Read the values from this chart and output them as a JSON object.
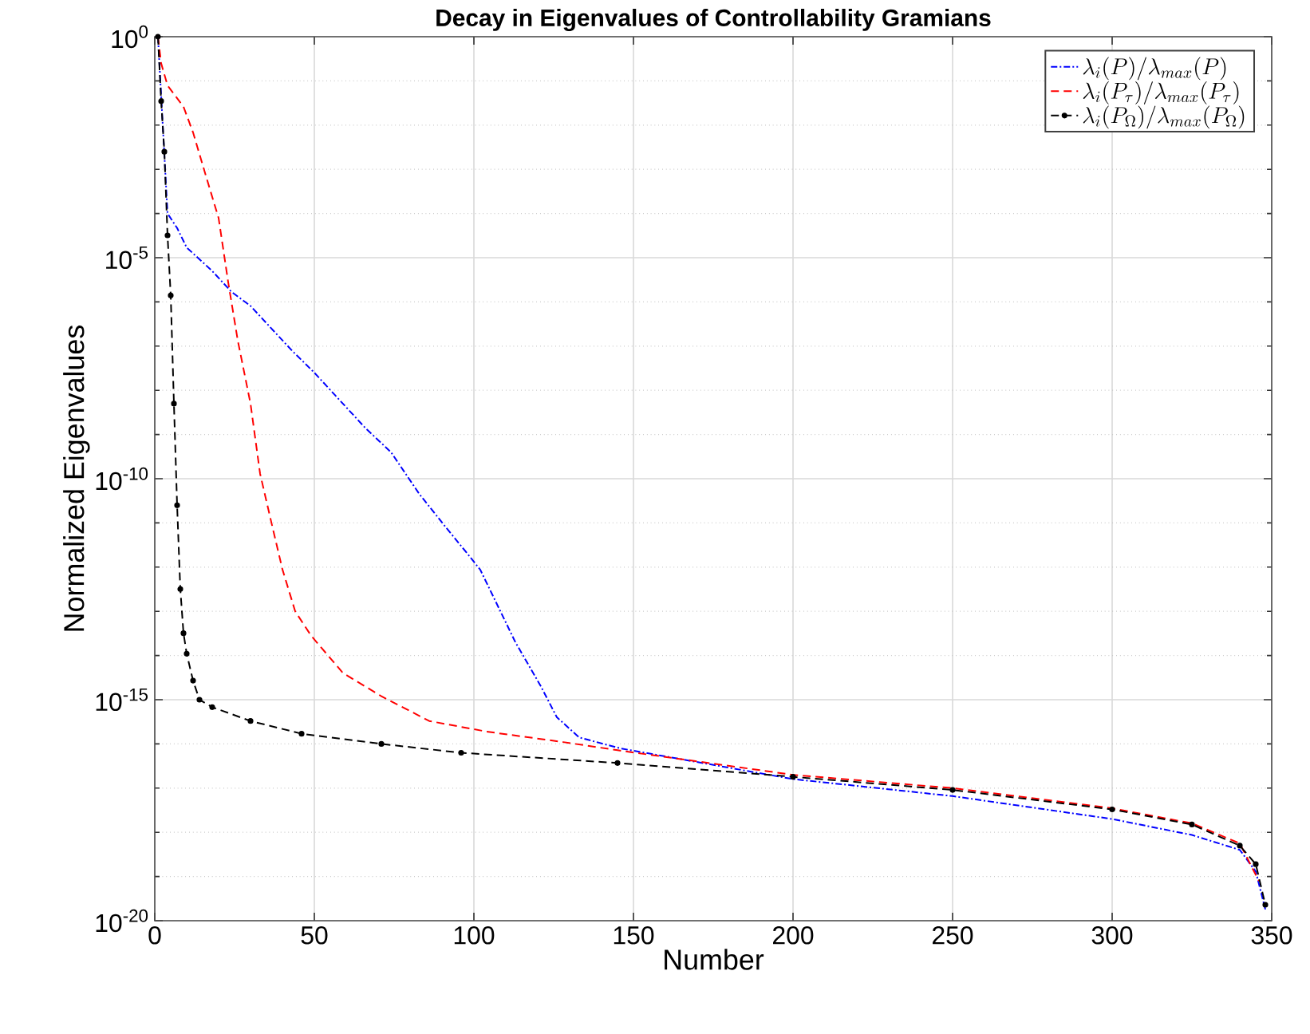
{
  "chart_data": {
    "type": "line",
    "title": "Decay in Eigenvalues of Controllability Gramians",
    "xlabel": "Number",
    "ylabel": "Normalized Eigenvalues",
    "log": "y",
    "grid": true,
    "legend": "top right",
    "xlim": [
      0,
      350
    ],
    "xticks": [
      0,
      50,
      100,
      150,
      200,
      250,
      300,
      350
    ],
    "ylim": [
      1e-20,
      1
    ],
    "yticks": [
      {
        "value": 1e-20,
        "label": "10$^{-20}$"
      },
      {
        "value": 1e-15,
        "label": "10$^{-15}$"
      },
      {
        "value": 1e-10,
        "label": "10$^{-10}$"
      },
      {
        "value": 1e-05,
        "label": "10$^{-5}$"
      },
      {
        "value": 1,
        "label": "10$^{0}$"
      }
    ],
    "series": [
      {
        "name": "\\lambda_i(P)/\\lambda_{max}(P)",
        "color": "#0000ff",
        "line_style": "dashdot",
        "marker": "none",
        "x": [
          1,
          4,
          7,
          10,
          18,
          24,
          30,
          43,
          50,
          66,
          74,
          83,
          91,
          98,
          102,
          113,
          121,
          126,
          133,
          146,
          200,
          250,
          300,
          325,
          340,
          345,
          348
        ],
        "values": [
          1,
          0.0001,
          4.7e-05,
          1.7e-05,
          5e-06,
          1.7e-06,
          8.1e-07,
          7.9e-08,
          2.5e-08,
          1.4e-09,
          4e-10,
          4.4e-11,
          8.3e-12,
          2e-12,
          8.7e-13,
          2e-14,
          2e-15,
          4e-16,
          1.4e-16,
          7.9e-17,
          1.6e-17,
          6.6e-18,
          2e-18,
          8.7e-19,
          4e-19,
          1.3e-19,
          1.8e-20
        ]
      },
      {
        "name": "\\lambda_i(P_\\tau)/\\lambda_{max}(P_\\tau)",
        "color": "#ff0000",
        "line_style": "dashed",
        "marker": "none",
        "x": [
          1,
          2,
          4,
          9,
          12,
          16,
          20,
          23,
          26,
          30,
          33,
          36,
          40,
          44,
          49,
          59,
          71,
          86,
          104,
          128,
          145,
          200,
          250,
          300,
          325,
          340,
          346
        ],
        "values": [
          1,
          0.25,
          0.079,
          0.026,
          0.0068,
          0.00072,
          7.9e-05,
          2.8e-06,
          1.35e-07,
          5e-09,
          1.3e-10,
          1.5e-11,
          8.9e-13,
          1e-13,
          2.8e-14,
          4e-15,
          1.2e-15,
          3.3e-16,
          1.9e-16,
          1.1e-16,
          7.2e-17,
          2e-17,
          1e-17,
          3.5e-18,
          1.6e-18,
          5.6e-19,
          7.9e-20
        ]
      },
      {
        "name": "\\lambda_i(P_\\Omega)/\\lambda_{max}(P_\\Omega)",
        "color": "#000000",
        "line_style": "dashed",
        "marker": "circle",
        "x": [
          1,
          2,
          3,
          4,
          5,
          6,
          7,
          8,
          9,
          10,
          12,
          14,
          18,
          30,
          46,
          71,
          96,
          145,
          200,
          250,
          300,
          325,
          340,
          345,
          348
        ],
        "values": [
          1,
          0.035,
          0.0025,
          3.2e-05,
          1.4e-06,
          5e-09,
          2.5e-11,
          3.2e-13,
          3.2e-14,
          1.1e-14,
          2.7e-15,
          1e-15,
          6.8e-16,
          3.3e-16,
          1.7e-16,
          1e-16,
          6.3e-17,
          3.7e-17,
          1.8e-17,
          9.1e-18,
          3.3e-18,
          1.5e-18,
          5e-19,
          1.9e-19,
          2.3e-20
        ]
      }
    ]
  }
}
